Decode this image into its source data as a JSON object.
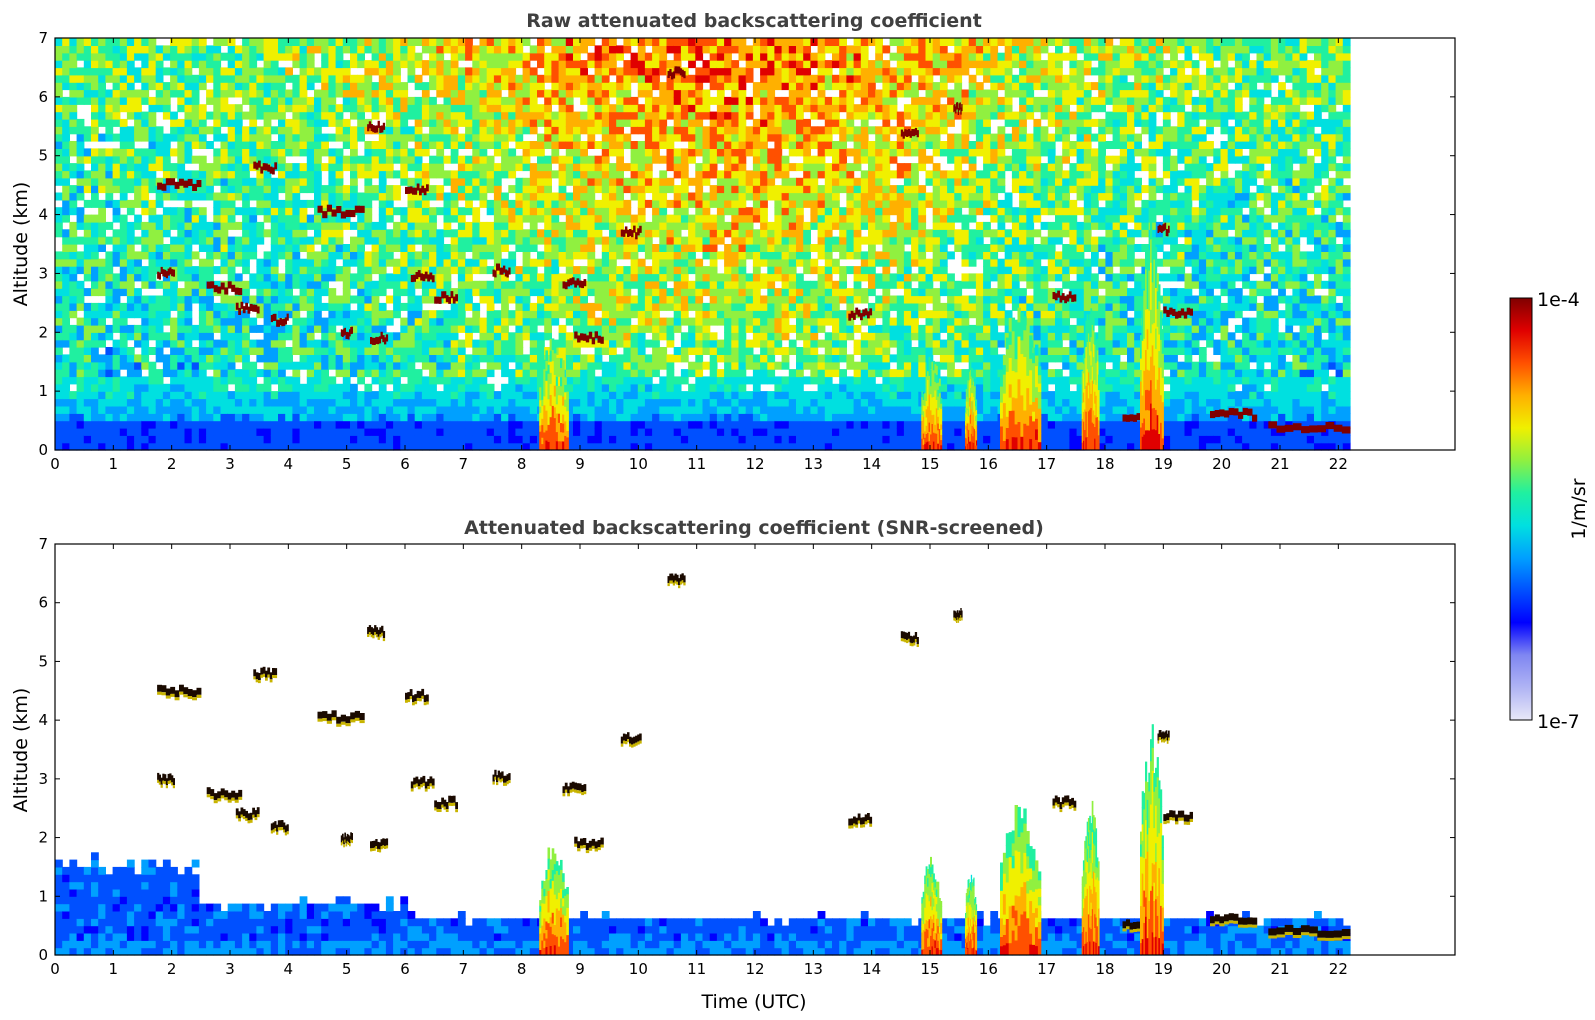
{
  "colormap": [
    "#e8e8f8",
    "#b0b4f4",
    "#7f86f2",
    "#0000ff",
    "#0050ff",
    "#00a0ff",
    "#00e0e0",
    "#20f0a0",
    "#90f040",
    "#f0f000",
    "#ffb000",
    "#ff5000",
    "#e00000",
    "#800000"
  ],
  "colorbar": {
    "label": "1/m/sr",
    "tick_top": "1e-4",
    "tick_bottom": "1e-7",
    "range": [
      1e-07,
      0.0001
    ],
    "scale": "log"
  },
  "chart_data": [
    {
      "type": "heatmap",
      "title": "Raw attenuated backscattering coefficient",
      "xlabel": "",
      "ylabel": "Altitude (km)",
      "xlim": [
        0,
        24
      ],
      "ylim": [
        0,
        7
      ],
      "xticks": [
        "0",
        "1",
        "2",
        "3",
        "4",
        "5",
        "6",
        "7",
        "8",
        "9",
        "10",
        "11",
        "12",
        "13",
        "14",
        "15",
        "16",
        "17",
        "18",
        "19",
        "20",
        "21",
        "22"
      ],
      "yticks": [
        "0",
        "1",
        "2",
        "3",
        "4",
        "5",
        "6",
        "7"
      ],
      "data_end_time": 22.2,
      "features": [
        {
          "kind": "cloud",
          "t0": 1.75,
          "t1": 2.5,
          "alt": 4.5
        },
        {
          "kind": "cloud",
          "t0": 3.4,
          "t1": 3.8,
          "alt": 4.8
        },
        {
          "kind": "cloud",
          "t0": 4.5,
          "t1": 5.3,
          "alt": 4.05
        },
        {
          "kind": "cloud",
          "t0": 5.35,
          "t1": 5.65,
          "alt": 5.5
        },
        {
          "kind": "cloud",
          "t0": 6.0,
          "t1": 6.4,
          "alt": 4.42
        },
        {
          "kind": "cloud",
          "t0": 1.75,
          "t1": 2.05,
          "alt": 3.0
        },
        {
          "kind": "cloud",
          "t0": 2.6,
          "t1": 3.2,
          "alt": 2.75
        },
        {
          "kind": "cloud",
          "t0": 3.1,
          "t1": 3.5,
          "alt": 2.4
        },
        {
          "kind": "cloud",
          "t0": 3.7,
          "t1": 4.0,
          "alt": 2.2
        },
        {
          "kind": "cloud",
          "t0": 4.9,
          "t1": 5.1,
          "alt": 2.0
        },
        {
          "kind": "cloud",
          "t0": 5.4,
          "t1": 5.7,
          "alt": 1.9
        },
        {
          "kind": "cloud",
          "t0": 6.1,
          "t1": 6.5,
          "alt": 2.95
        },
        {
          "kind": "cloud",
          "t0": 6.5,
          "t1": 6.9,
          "alt": 2.6
        },
        {
          "kind": "cloud",
          "t0": 7.5,
          "t1": 7.8,
          "alt": 3.05
        },
        {
          "kind": "cloud",
          "t0": 8.7,
          "t1": 9.1,
          "alt": 2.85
        },
        {
          "kind": "cloud",
          "t0": 8.9,
          "t1": 9.4,
          "alt": 1.9
        },
        {
          "kind": "cloud",
          "t0": 9.7,
          "t1": 10.05,
          "alt": 3.7
        },
        {
          "kind": "cloud",
          "t0": 10.5,
          "t1": 10.8,
          "alt": 6.4
        },
        {
          "kind": "cloud",
          "t0": 13.6,
          "t1": 14.0,
          "alt": 2.3
        },
        {
          "kind": "cloud",
          "t0": 14.5,
          "t1": 14.8,
          "alt": 5.4
        },
        {
          "kind": "cloud",
          "t0": 15.4,
          "t1": 15.55,
          "alt": 5.8
        },
        {
          "kind": "cloud",
          "t0": 17.1,
          "t1": 17.5,
          "alt": 2.6
        },
        {
          "kind": "cloud",
          "t0": 18.3,
          "t1": 18.9,
          "alt": 0.55
        },
        {
          "kind": "cloud",
          "t0": 18.9,
          "t1": 19.1,
          "alt": 3.75
        },
        {
          "kind": "cloud",
          "t0": 19.0,
          "t1": 19.5,
          "alt": 2.35
        },
        {
          "kind": "cloud",
          "t0": 19.8,
          "t1": 20.6,
          "alt": 0.6
        },
        {
          "kind": "cloud",
          "t0": 20.8,
          "t1": 22.2,
          "alt": 0.4
        },
        {
          "kind": "column",
          "t0": 8.3,
          "t1": 8.8,
          "top": 1.8
        },
        {
          "kind": "column",
          "t0": 14.85,
          "t1": 15.2,
          "top": 1.6
        },
        {
          "kind": "column",
          "t0": 15.6,
          "t1": 15.8,
          "top": 1.4
        },
        {
          "kind": "column",
          "t0": 16.2,
          "t1": 16.9,
          "top": 2.4
        },
        {
          "kind": "column",
          "t0": 17.6,
          "t1": 17.9,
          "top": 2.5
        },
        {
          "kind": "column",
          "t0": 18.6,
          "t1": 19.0,
          "top": 3.7
        }
      ]
    },
    {
      "type": "heatmap",
      "title": "Attenuated backscattering coefficient (SNR-screened)",
      "xlabel": "Time (UTC)",
      "ylabel": "Altitude (km)",
      "xlim": [
        0,
        24
      ],
      "ylim": [
        0,
        7
      ],
      "xticks": [
        "0",
        "1",
        "2",
        "3",
        "4",
        "5",
        "6",
        "7",
        "8",
        "9",
        "10",
        "11",
        "12",
        "13",
        "14",
        "15",
        "16",
        "17",
        "18",
        "19",
        "20",
        "21",
        "22"
      ],
      "yticks": [
        "0",
        "1",
        "2",
        "3",
        "4",
        "5",
        "6",
        "7"
      ],
      "data_end_time": 22.2,
      "screened": true
    }
  ]
}
